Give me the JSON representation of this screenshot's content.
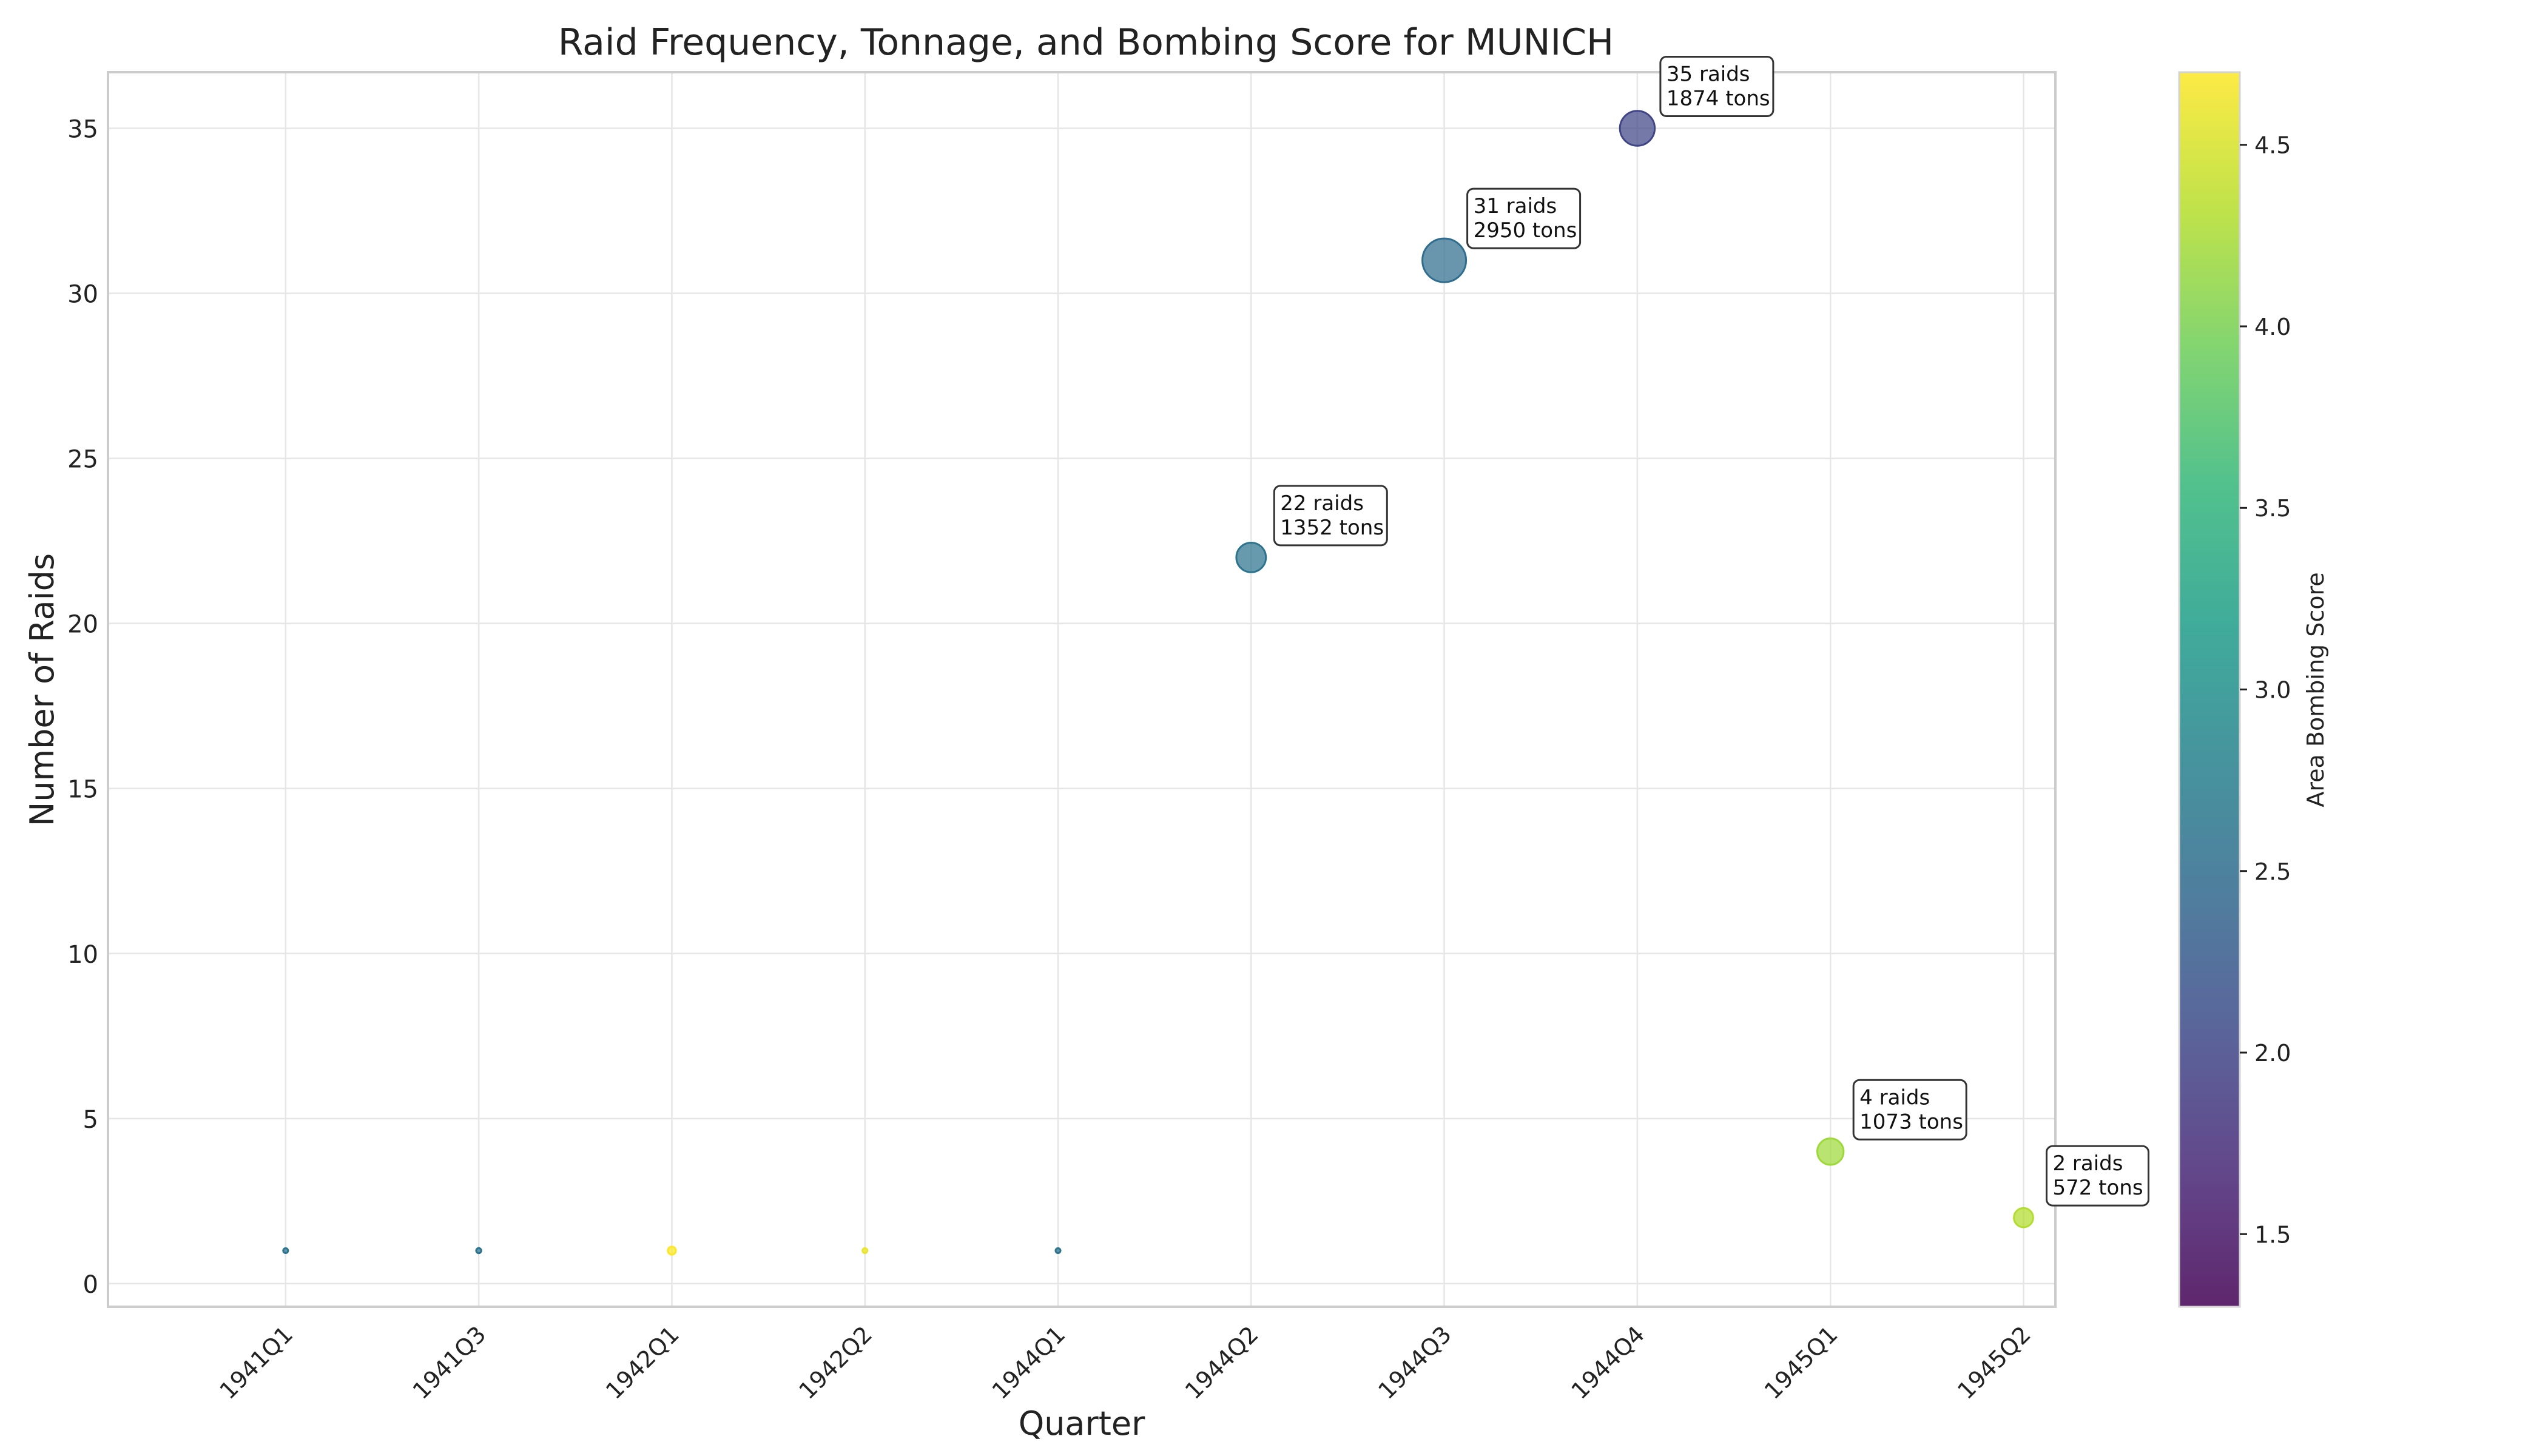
{
  "chart_data": {
    "type": "scatter",
    "title": "Raid Frequency, Tonnage, and Bombing Score for MUNICH",
    "xlabel": "Quarter",
    "ylabel": "Number of Raids",
    "categories": [
      "1941Q1",
      "1941Q3",
      "1942Q1",
      "1942Q2",
      "1944Q1",
      "1944Q2",
      "1944Q3",
      "1944Q4",
      "1945Q1",
      "1945Q2"
    ],
    "points": [
      {
        "quarter": "1941Q1",
        "raids": 1,
        "tons": 5,
        "score": 2.6,
        "label": ""
      },
      {
        "quarter": "1941Q3",
        "raids": 1,
        "tons": 40,
        "score": 2.6,
        "label": ""
      },
      {
        "quarter": "1942Q1",
        "raids": 1,
        "tons": 100,
        "score": 4.7,
        "label": ""
      },
      {
        "quarter": "1942Q2",
        "raids": 1,
        "tons": 25,
        "score": 4.6,
        "label": ""
      },
      {
        "quarter": "1944Q1",
        "raids": 1,
        "tons": 30,
        "score": 2.6,
        "label": ""
      },
      {
        "quarter": "1944Q2",
        "raids": 22,
        "tons": 1352,
        "score": 2.6,
        "label": "22 raids\n1352 tons"
      },
      {
        "quarter": "1944Q3",
        "raids": 31,
        "tons": 2950,
        "score": 2.5,
        "label": "31 raids\n2950 tons"
      },
      {
        "quarter": "1944Q4",
        "raids": 35,
        "tons": 1874,
        "score": 2.0,
        "label": "35 raids\n1874 tons"
      },
      {
        "quarter": "1945Q1",
        "raids": 4,
        "tons": 1073,
        "score": 4.2,
        "label": "4 raids\n1073 tons"
      },
      {
        "quarter": "1945Q2",
        "raids": 2,
        "tons": 572,
        "score": 4.3,
        "label": "2 raids\n572 tons"
      }
    ],
    "ylim": [
      -0.7,
      36.7
    ],
    "yticks": [
      0,
      5,
      10,
      15,
      20,
      25,
      30,
      35
    ],
    "grid": true,
    "colorbar": {
      "label": "Area Bombing Score",
      "range": [
        1.3,
        4.7
      ],
      "ticks": [
        1.5,
        2.0,
        2.5,
        3.0,
        3.5,
        4.0,
        4.5
      ],
      "colormap": [
        "#440154",
        "#482878",
        "#3e4a89",
        "#31688e",
        "#26828e",
        "#1f9e89",
        "#35b779",
        "#6ece58",
        "#b5de2b",
        "#fde725"
      ]
    }
  }
}
